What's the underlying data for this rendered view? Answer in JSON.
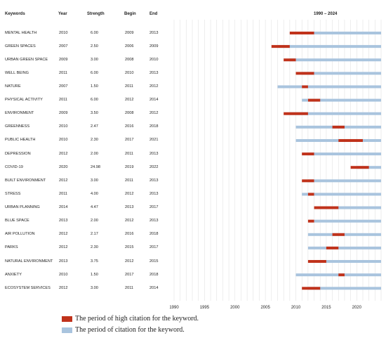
{
  "chart_data": {
    "type": "citation-burst",
    "columns": {
      "keywords": "Keywords",
      "year": "Year",
      "strength": "Strength",
      "begin": "Begin",
      "end": "End",
      "range": "1990 – 2024"
    },
    "x_range": [
      1990,
      2024
    ],
    "x_ticks": [
      "1990",
      "1995",
      "2000",
      "2005",
      "2010",
      "2015",
      "2020"
    ],
    "grid": true,
    "colors": {
      "burst": "#c0321b",
      "cited": "#a9c4de",
      "grid": "#e2e2e2"
    },
    "rows": [
      {
        "keyword": "MENTAL HEALTH",
        "year": "2010",
        "strength": "6.00",
        "begin": "2009",
        "end": "2013"
      },
      {
        "keyword": "GREEN SPACES",
        "year": "2007",
        "strength": "2.50",
        "begin": "2006",
        "end": "2009"
      },
      {
        "keyword": "URBAN GREEN SPACE",
        "year": "2009",
        "strength": "3.00",
        "begin": "2008",
        "end": "2010"
      },
      {
        "keyword": "WELL BEING",
        "year": "2011",
        "strength": "6.00",
        "begin": "2010",
        "end": "2013"
      },
      {
        "keyword": "NATURE",
        "year": "2007",
        "strength": "1.50",
        "begin": "2011",
        "end": "2012"
      },
      {
        "keyword": "PHYSICAL ACTIVITY",
        "year": "2011",
        "strength": "6.00",
        "begin": "2012",
        "end": "2014"
      },
      {
        "keyword": "ENVIRONMENT",
        "year": "2009",
        "strength": "3.50",
        "begin": "2008",
        "end": "2012"
      },
      {
        "keyword": "GREENNESS",
        "year": "2010",
        "strength": "2.47",
        "begin": "2016",
        "end": "2018"
      },
      {
        "keyword": "PUBLIC HEALTH",
        "year": "2010",
        "strength": "2.30",
        "begin": "2017",
        "end": "2021"
      },
      {
        "keyword": "DEPRESSION",
        "year": "2012",
        "strength": "2.00",
        "begin": "2011",
        "end": "2013"
      },
      {
        "keyword": "COVID-19",
        "year": "2020",
        "strength": "24.98",
        "begin": "2019",
        "end": "2022"
      },
      {
        "keyword": "BUILT ENVIRONMENT",
        "year": "2012",
        "strength": "3.00",
        "begin": "2011",
        "end": "2013"
      },
      {
        "keyword": "STRESS",
        "year": "2011",
        "strength": "4.00",
        "begin": "2012",
        "end": "2013"
      },
      {
        "keyword": "URBAN PLANNING",
        "year": "2014",
        "strength": "4.47",
        "begin": "2013",
        "end": "2017"
      },
      {
        "keyword": "BLUE SPACE",
        "year": "2013",
        "strength": "2.00",
        "begin": "2012",
        "end": "2013"
      },
      {
        "keyword": "AIR POLLUTION",
        "year": "2012",
        "strength": "2.17",
        "begin": "2016",
        "end": "2018"
      },
      {
        "keyword": "PARKS",
        "year": "2012",
        "strength": "2.30",
        "begin": "2015",
        "end": "2017"
      },
      {
        "keyword": "NATURAL ENVIRONMENT",
        "year": "2013",
        "strength": "3.75",
        "begin": "2012",
        "end": "2015"
      },
      {
        "keyword": "ANXIETY",
        "year": "2010",
        "strength": "1.50",
        "begin": "2017",
        "end": "2018"
      },
      {
        "keyword": "ECOSYSTEM SERVICES",
        "year": "2012",
        "strength": "3.00",
        "begin": "2011",
        "end": "2014"
      }
    ],
    "legend": [
      {
        "label": "The period of high citation for the keyword.",
        "color": "#c0321b"
      },
      {
        "label": "The period of citation for the keyword.",
        "color": "#a9c4de"
      }
    ]
  }
}
